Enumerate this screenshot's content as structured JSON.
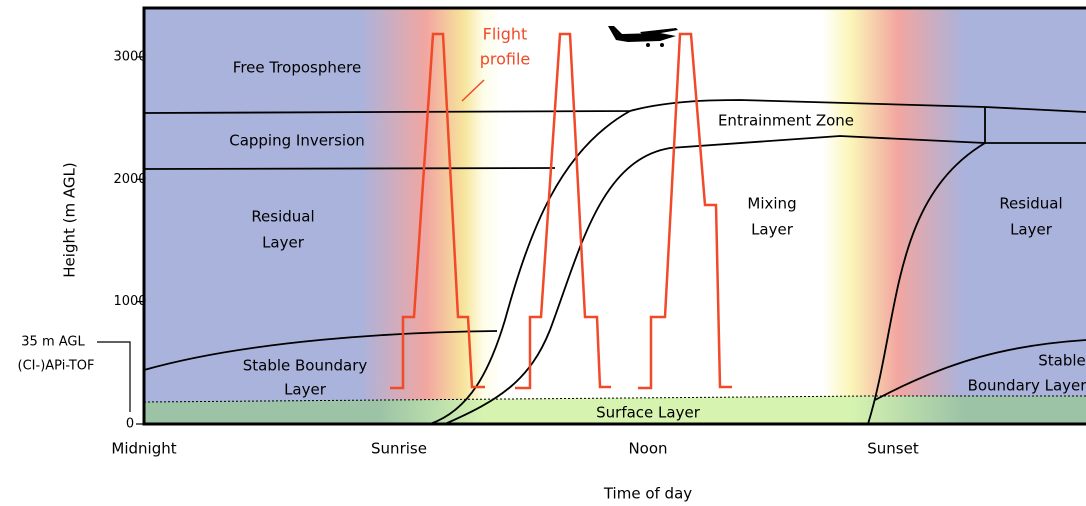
{
  "axis": {
    "y": {
      "label": "Height (m AGL)",
      "lim": [
        0,
        3400
      ],
      "ticks": [
        0,
        1000,
        2000,
        3000
      ]
    },
    "x": {
      "label": "Time of day",
      "categories": [
        "Midnight",
        "Sunrise",
        "Noon",
        "Sunset"
      ]
    }
  },
  "annotations": {
    "flight_profile": [
      "Flight",
      "profile"
    ],
    "instrument": [
      "35 m AGL",
      "(CI-)APi-TOF"
    ]
  },
  "regions": {
    "free_troposphere": "Free Troposphere",
    "capping_inversion": "Capping Inversion",
    "residual_left": [
      "Residual",
      "Layer"
    ],
    "stable_left": [
      "Stable Boundary",
      "Layer"
    ],
    "entrainment": "Entrainment Zone",
    "mixing": [
      "Mixing",
      "Layer"
    ],
    "residual_right": [
      "Residual",
      "Layer"
    ],
    "stable_right": [
      "Stable",
      "Boundary Layer"
    ],
    "surface": "Surface Layer"
  }
}
